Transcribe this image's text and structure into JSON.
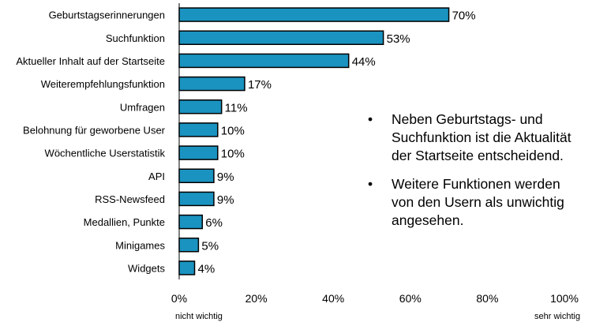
{
  "chart_data": {
    "type": "bar",
    "orientation": "horizontal",
    "categories": [
      "Geburtstagserinnerungen",
      "Suchfunktion",
      "Aktueller Inhalt auf der Startseite",
      "Weiterempfehlungsfunktion",
      "Umfragen",
      "Belohnung für geworbene User",
      "Wöchentliche Userstatistik",
      "API",
      "RSS-Newsfeed",
      "Medallien, Punkte",
      "Minigames",
      "Widgets"
    ],
    "values": [
      70,
      53,
      44,
      17,
      11,
      10,
      10,
      9,
      9,
      6,
      5,
      4
    ],
    "value_labels": [
      "70%",
      "53%",
      "44%",
      "17%",
      "11%",
      "10%",
      "10%",
      "9%",
      "9%",
      "6%",
      "5%",
      "4%"
    ],
    "xlim": [
      0,
      100
    ],
    "x_ticks": [
      0,
      20,
      40,
      60,
      80,
      100
    ],
    "x_tick_labels": [
      "0%",
      "20%",
      "40%",
      "60%",
      "80%",
      "100%"
    ],
    "bar_color": "#1a93c0",
    "grid": false,
    "scale_low_label": "nicht  wichtig",
    "scale_high_label": "sehr wichtig"
  },
  "notes": [
    "Neben Geburtstags- und Suchfunktion ist die Aktualität der Startseite entscheidend.",
    "Weitere Funktionen werden von den Usern als unwichtig angesehen."
  ],
  "bullet_symbol": "•"
}
